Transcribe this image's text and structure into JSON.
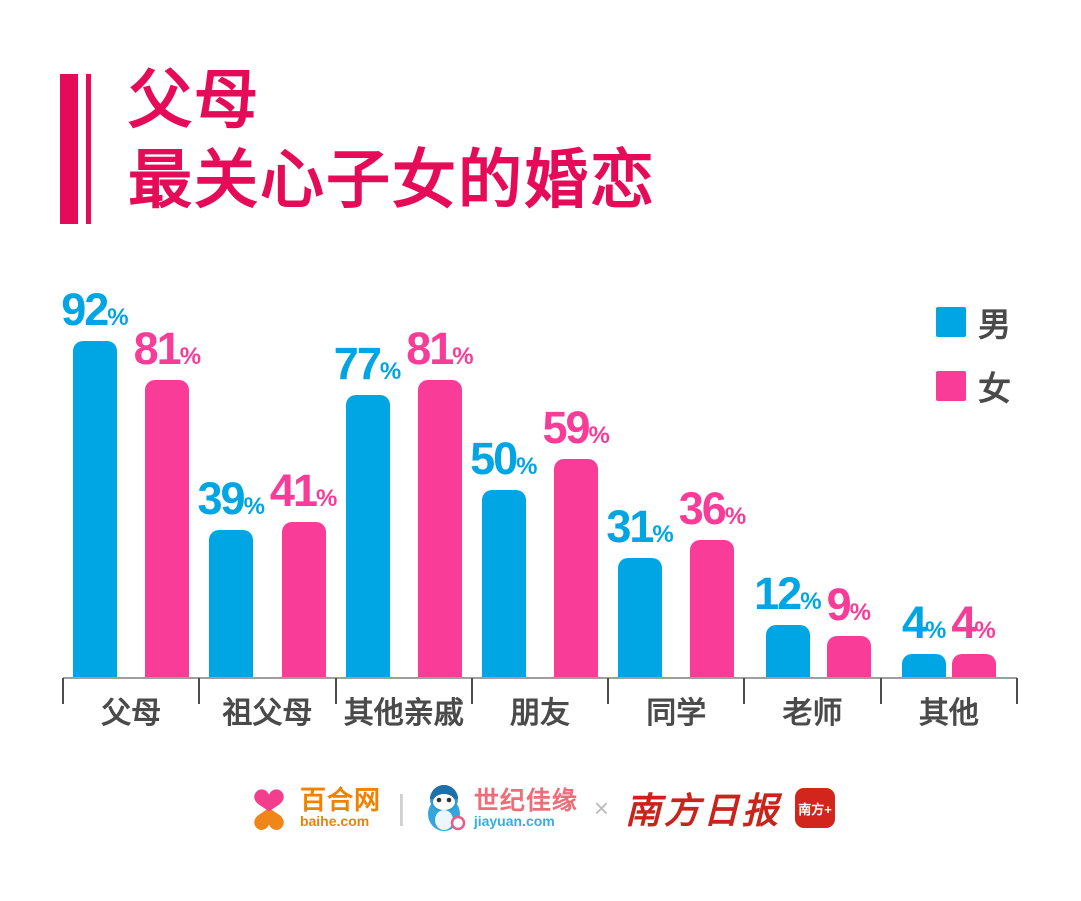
{
  "title": {
    "line1": "父母",
    "line2": "最关心子女的婚恋"
  },
  "legend": [
    {
      "label": "男",
      "color": "#00A5E3"
    },
    {
      "label": "女",
      "color": "#FA3C99"
    }
  ],
  "chart_data": {
    "type": "bar",
    "title": "父母最关心子女的婚恋",
    "categories": [
      "父母",
      "祖父母",
      "其他亲戚",
      "朋友",
      "同学",
      "老师",
      "其他"
    ],
    "series": [
      {
        "name": "男",
        "color": "#00A5E3",
        "values": [
          92,
          39,
          77,
          50,
          31,
          12,
          4
        ]
      },
      {
        "name": "女",
        "color": "#FA3C99",
        "values": [
          81,
          41,
          81,
          59,
          36,
          9,
          4
        ]
      }
    ],
    "value_suffix": "%",
    "ylim": [
      0,
      100
    ],
    "grid": false,
    "legend_position": "top-right",
    "value_labels": "above-bars"
  },
  "footer": {
    "baihe": {
      "name": "百合网",
      "domain": "baihe.com"
    },
    "divider1": "|",
    "jiayuan": {
      "name": "世纪佳缘",
      "domain": "jiayuan.com"
    },
    "divider2": "×",
    "southern_daily": {
      "name": "南方日报",
      "app_badge": "南方+"
    }
  },
  "colors": {
    "title_accent": "#E60B58",
    "male_blue": "#00A5E3",
    "female_pink": "#FA3C99",
    "axis_text": "#4A4A4A",
    "baihe_orange": "#F08200",
    "jiayuan_pink": "#ED6E79",
    "jiayuan_blue": "#35AEDD",
    "southern_red": "#C9241B"
  }
}
